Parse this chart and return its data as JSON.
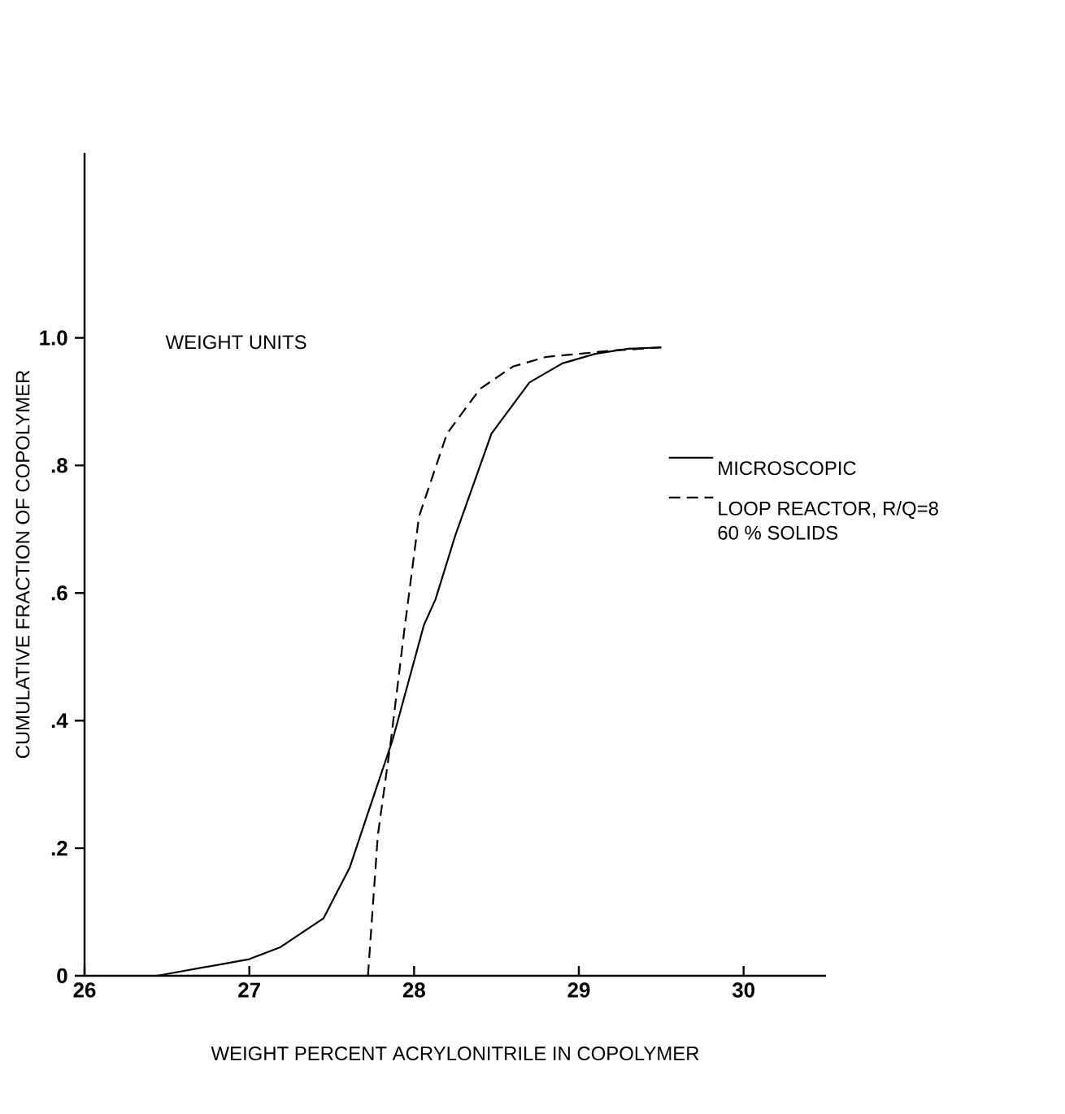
{
  "chart_data": {
    "type": "line",
    "xlabel": "WEIGHT PERCENT ACRYLONITRILE IN COPOLYMER",
    "ylabel": "CUMULATIVE FRACTION OF COPOLYMER",
    "annotations": [
      "WEIGHT UNITS"
    ],
    "xlim": [
      26,
      30.5
    ],
    "xticks": [
      26,
      27,
      28,
      29,
      30
    ],
    "ylim": [
      0,
      1.29
    ],
    "yticks": [
      0,
      {
        "value": 0.2,
        "label": ".2"
      },
      {
        "value": 0.4,
        "label": ".4"
      },
      {
        "value": 0.6,
        "label": ".6"
      },
      {
        "value": 0.8,
        "label": ".8"
      },
      {
        "value": 1.0,
        "label": "1.0"
      }
    ],
    "grid": false,
    "legend": "right",
    "marker": "none",
    "series": [
      {
        "name": "MICROSCOPIC",
        "color": "#000000",
        "line_style": "solid",
        "x": [
          26.0,
          26.44,
          27.0,
          27.19,
          27.45,
          27.53,
          27.61,
          27.72,
          27.87,
          28.06,
          28.13,
          28.25,
          28.47,
          28.7,
          28.9,
          29.1,
          29.3,
          29.5
        ],
        "values": [
          0,
          0,
          0.026,
          0.045,
          0.09,
          0.13,
          0.17,
          0.255,
          0.37,
          0.55,
          0.59,
          0.69,
          0.85,
          0.93,
          0.96,
          0.975,
          0.983,
          0.985
        ]
      },
      {
        "name": "LOOP REACTOR, R/Q=8 60 % SOLIDS",
        "color": "#000000",
        "line_style": "dashed",
        "x": [
          27.72,
          27.78,
          27.86,
          27.94,
          28.03,
          28.2,
          28.4,
          28.6,
          28.8,
          29.0,
          29.2,
          29.5
        ],
        "values": [
          0,
          0.22,
          0.37,
          0.54,
          0.72,
          0.85,
          0.92,
          0.955,
          0.97,
          0.975,
          0.98,
          0.985
        ]
      }
    ]
  }
}
